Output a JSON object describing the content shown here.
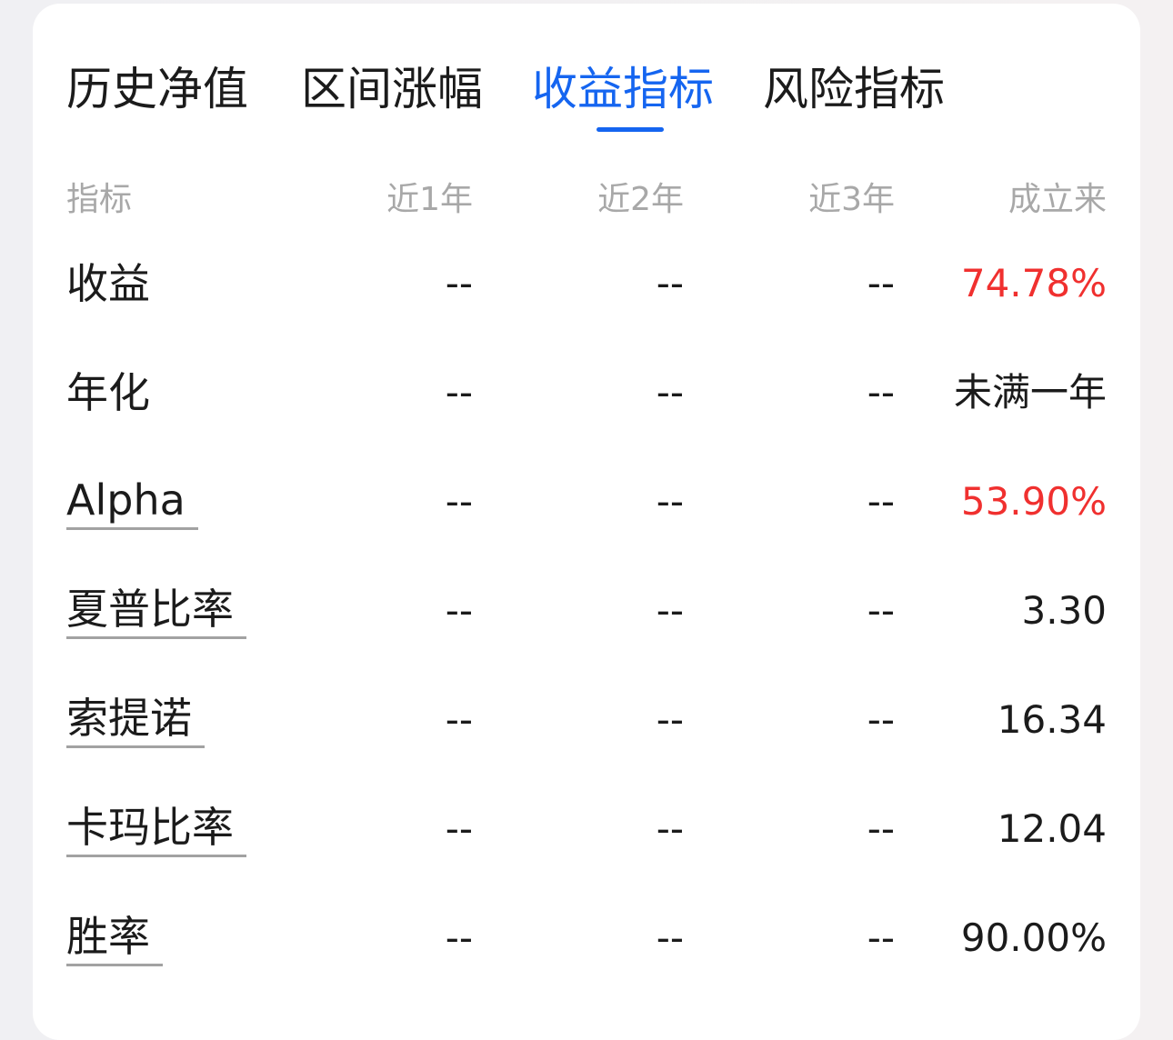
{
  "tabs": [
    {
      "label": "历史净值",
      "active": false
    },
    {
      "label": "区间涨幅",
      "active": false
    },
    {
      "label": "收益指标",
      "active": true
    },
    {
      "label": "风险指标",
      "active": false
    }
  ],
  "colors": {
    "accent": "#1565f0",
    "positive": "#f0302f"
  },
  "table": {
    "headers": [
      "指标",
      "近1年",
      "近2年",
      "近3年",
      "成立来"
    ],
    "rows": [
      {
        "label": "收益",
        "values": [
          "--",
          "--",
          "--",
          "74.78%"
        ],
        "highlight": true,
        "underlined": false
      },
      {
        "label": "年化",
        "values": [
          "--",
          "--",
          "--",
          "未满一年"
        ],
        "highlight": false,
        "underlined": false
      },
      {
        "label": "Alpha",
        "values": [
          "--",
          "--",
          "--",
          "53.90%"
        ],
        "highlight": true,
        "underlined": true
      },
      {
        "label": "夏普比率",
        "values": [
          "--",
          "--",
          "--",
          "3.30"
        ],
        "highlight": false,
        "underlined": true
      },
      {
        "label": "索提诺",
        "values": [
          "--",
          "--",
          "--",
          "16.34"
        ],
        "highlight": false,
        "underlined": true
      },
      {
        "label": "卡玛比率",
        "values": [
          "--",
          "--",
          "--",
          "12.04"
        ],
        "highlight": false,
        "underlined": true
      },
      {
        "label": "胜率",
        "values": [
          "--",
          "--",
          "--",
          "90.00%"
        ],
        "highlight": false,
        "underlined": true
      }
    ]
  }
}
